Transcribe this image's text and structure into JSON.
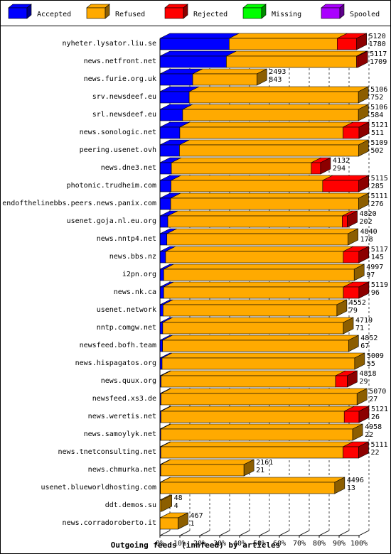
{
  "chart_data": {
    "type": "bar",
    "orientation": "horizontal",
    "stacked": true,
    "style": "3d",
    "title": "Outgoing feeds (innfeed) by articles",
    "xlim": [
      0,
      100
    ],
    "x_unit": "%",
    "x_ticks": [
      "0%",
      "10%",
      "20%",
      "30%",
      "40%",
      "50%",
      "60%",
      "70%",
      "80%",
      "90%",
      "100%"
    ],
    "legend_position": "top",
    "legend": [
      {
        "name": "Accepted",
        "color": "#0000ff"
      },
      {
        "name": "Refused",
        "color": "#ffaa00"
      },
      {
        "name": "Rejected",
        "color": "#ff0000"
      },
      {
        "name": "Missing",
        "color": "#00ff00"
      },
      {
        "name": "Spooled",
        "color": "#aa00ff"
      }
    ],
    "series_colors": {
      "accepted": "#0000ff",
      "refused": "#ffaa00",
      "rejected": "#ff0000",
      "missing": "#00ff00",
      "spooled": "#aa00ff"
    },
    "rows": [
      {
        "name": "nyheter.lysator.liu.se",
        "total": "5120",
        "accepted_count": "1780",
        "accepted": 1780,
        "refused": 2780,
        "rejected": 500,
        "missing": 0,
        "spooled": 0
      },
      {
        "name": "news.netfront.net",
        "total": "5117",
        "accepted_count": "1709",
        "accepted": 1709,
        "refused": 3348,
        "rejected": 30,
        "missing": 0,
        "spooled": 0
      },
      {
        "name": "news.furie.org.uk",
        "total": "2493",
        "accepted_count": "843",
        "accepted": 843,
        "refused": 1650,
        "rejected": 0,
        "missing": 0,
        "spooled": 0
      },
      {
        "name": "srv.newsdeef.eu",
        "total": "5106",
        "accepted_count": "752",
        "accepted": 752,
        "refused": 4354,
        "rejected": 0,
        "missing": 0,
        "spooled": 0
      },
      {
        "name": "srl.newsdeef.eu",
        "total": "5106",
        "accepted_count": "584",
        "accepted": 584,
        "refused": 4522,
        "rejected": 0,
        "missing": 0,
        "spooled": 0
      },
      {
        "name": "news.sonologic.net",
        "total": "5121",
        "accepted_count": "511",
        "accepted": 511,
        "refused": 4200,
        "rejected": 410,
        "missing": 0,
        "spooled": 0
      },
      {
        "name": "peering.usenet.ovh",
        "total": "5109",
        "accepted_count": "502",
        "accepted": 502,
        "refused": 4607,
        "rejected": 0,
        "missing": 0,
        "spooled": 0
      },
      {
        "name": "news.dne3.net",
        "total": "4132",
        "accepted_count": "294",
        "accepted": 294,
        "refused": 3600,
        "rejected": 238,
        "missing": 0,
        "spooled": 0
      },
      {
        "name": "photonic.trudheim.com",
        "total": "5115",
        "accepted_count": "285",
        "accepted": 285,
        "refused": 3900,
        "rejected": 930,
        "missing": 0,
        "spooled": 0
      },
      {
        "name": "endofthelinebbs.peers.news.panix.com",
        "total": "5111",
        "accepted_count": "276",
        "accepted": 276,
        "refused": 4835,
        "rejected": 0,
        "missing": 0,
        "spooled": 0
      },
      {
        "name": "usenet.goja.nl.eu.org",
        "total": "4820",
        "accepted_count": "202",
        "accepted": 202,
        "refused": 4488,
        "rejected": 130,
        "missing": 0,
        "spooled": 0
      },
      {
        "name": "news.nntp4.net",
        "total": "4840",
        "accepted_count": "178",
        "accepted": 178,
        "refused": 4662,
        "rejected": 0,
        "missing": 0,
        "spooled": 0
      },
      {
        "name": "news.bbs.nz",
        "total": "5117",
        "accepted_count": "145",
        "accepted": 145,
        "refused": 4572,
        "rejected": 400,
        "missing": 0,
        "spooled": 0
      },
      {
        "name": "i2pn.org",
        "total": "4997",
        "accepted_count": "97",
        "accepted": 97,
        "refused": 4900,
        "rejected": 0,
        "missing": 0,
        "spooled": 0
      },
      {
        "name": "news.nk.ca",
        "total": "5119",
        "accepted_count": "96",
        "accepted": 96,
        "refused": 4623,
        "rejected": 400,
        "missing": 0,
        "spooled": 0
      },
      {
        "name": "usenet.network",
        "total": "4552",
        "accepted_count": "79",
        "accepted": 79,
        "refused": 4473,
        "rejected": 0,
        "missing": 0,
        "spooled": 0
      },
      {
        "name": "nntp.comgw.net",
        "total": "4719",
        "accepted_count": "71",
        "accepted": 71,
        "refused": 4648,
        "rejected": 0,
        "missing": 0,
        "spooled": 0
      },
      {
        "name": "newsfeed.bofh.team",
        "total": "4852",
        "accepted_count": "67",
        "accepted": 67,
        "refused": 4785,
        "rejected": 0,
        "missing": 0,
        "spooled": 0
      },
      {
        "name": "news.hispagatos.org",
        "total": "5009",
        "accepted_count": "55",
        "accepted": 55,
        "refused": 4954,
        "rejected": 0,
        "missing": 0,
        "spooled": 0
      },
      {
        "name": "news.quux.org",
        "total": "4818",
        "accepted_count": "29",
        "accepted": 29,
        "refused": 4489,
        "rejected": 300,
        "missing": 0,
        "spooled": 0
      },
      {
        "name": "newsfeed.xs3.de",
        "total": "5070",
        "accepted_count": "27",
        "accepted": 27,
        "refused": 5043,
        "rejected": 0,
        "missing": 0,
        "spooled": 0
      },
      {
        "name": "news.weretis.net",
        "total": "5121",
        "accepted_count": "26",
        "accepted": 26,
        "refused": 4715,
        "rejected": 380,
        "missing": 0,
        "spooled": 0
      },
      {
        "name": "news.samoylyk.net",
        "total": "4958",
        "accepted_count": "22",
        "accepted": 22,
        "refused": 4936,
        "rejected": 0,
        "missing": 0,
        "spooled": 0
      },
      {
        "name": "news.tnetconsulting.net",
        "total": "5111",
        "accepted_count": "22",
        "accepted": 22,
        "refused": 4689,
        "rejected": 400,
        "missing": 0,
        "spooled": 0
      },
      {
        "name": "news.chmurka.net",
        "total": "2161",
        "accepted_count": "21",
        "accepted": 21,
        "refused": 2140,
        "rejected": 0,
        "missing": 0,
        "spooled": 0
      },
      {
        "name": "usenet.blueworldhosting.com",
        "total": "4496",
        "accepted_count": "13",
        "accepted": 13,
        "refused": 4483,
        "rejected": 0,
        "missing": 0,
        "spooled": 0
      },
      {
        "name": "ddt.demos.su",
        "total": "48",
        "accepted_count": "4",
        "accepted": 4,
        "refused": 44,
        "rejected": 0,
        "missing": 0,
        "spooled": 0
      },
      {
        "name": "news.corradoroberto.it",
        "total": "467",
        "accepted_count": "1",
        "accepted": 1,
        "refused": 466,
        "rejected": 0,
        "missing": 0,
        "spooled": 0
      }
    ]
  }
}
